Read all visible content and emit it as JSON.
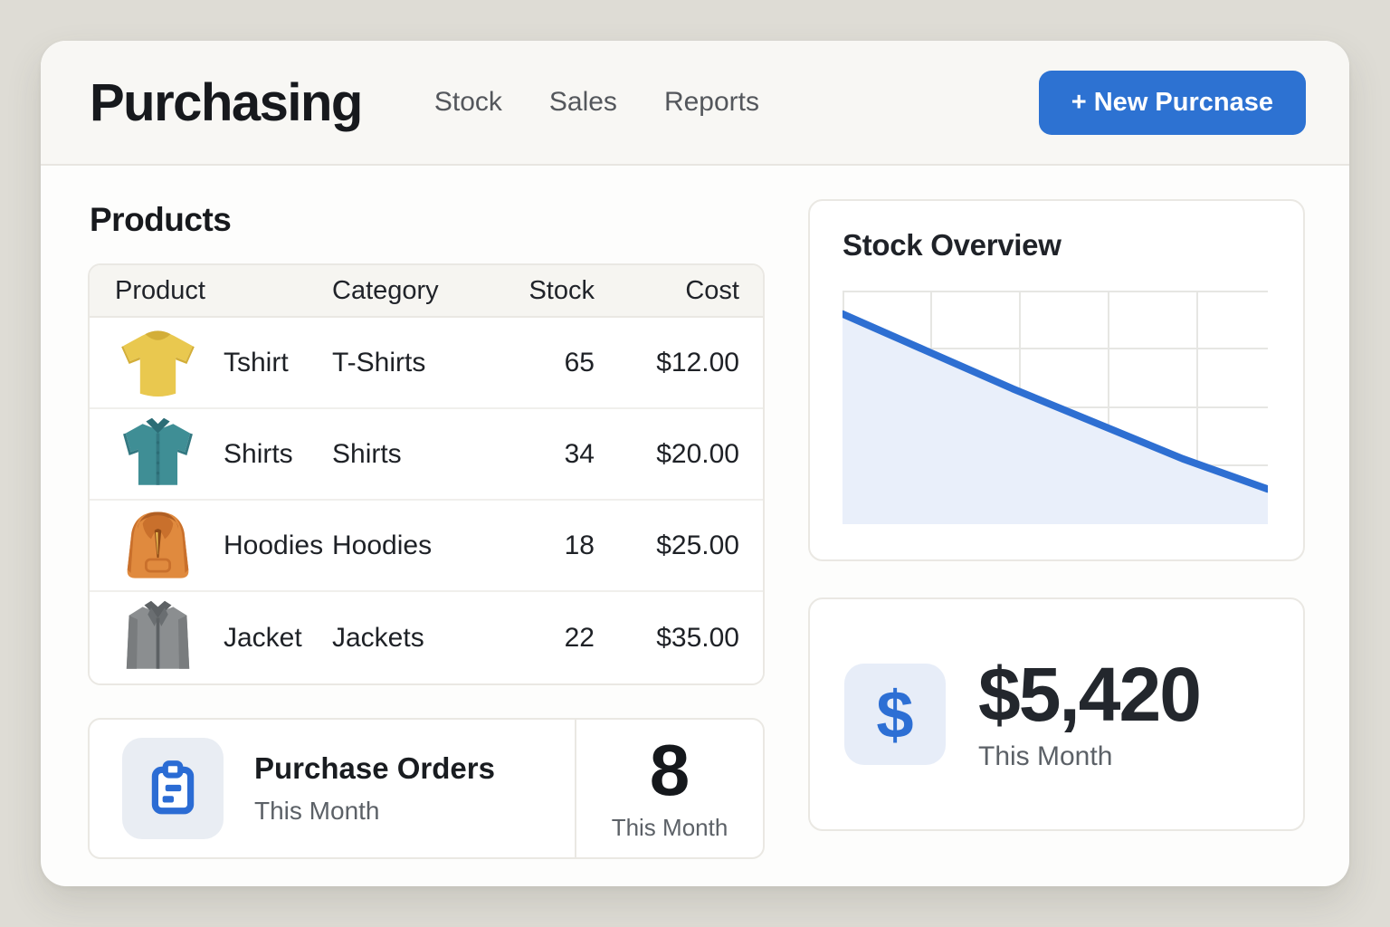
{
  "header": {
    "title": "Purchasing",
    "nav": [
      {
        "label": "Stock"
      },
      {
        "label": "Sales"
      },
      {
        "label": "Reports"
      }
    ],
    "new_purchase_button": "+ New Purcnase"
  },
  "products": {
    "heading": "Products",
    "table": {
      "columns": {
        "product": "Product",
        "category": "Category",
        "stock": "Stock",
        "cost": "Cost"
      },
      "rows": [
        {
          "icon": "tshirt-icon",
          "product": "Tshirt",
          "category": "T-Shirts",
          "stock": "65",
          "cost": "$12.00"
        },
        {
          "icon": "shirt-icon",
          "product": "Shirts",
          "category": "Shirts",
          "stock": "34",
          "cost": "$20.00"
        },
        {
          "icon": "hoodie-icon",
          "product": "Hoodies",
          "category": "Hoodies",
          "stock": "18",
          "cost": "$25.00"
        },
        {
          "icon": "jacket-icon",
          "product": "Jacket",
          "category": "Jackets",
          "stock": "22",
          "cost": "$35.00"
        }
      ]
    }
  },
  "purchase_orders_card": {
    "title": "Purchase Orders",
    "subtitle": "This Month",
    "count": "8",
    "count_label": "This Month"
  },
  "stock_overview_card": {
    "title": "Stock Overview"
  },
  "chart_data": {
    "type": "area",
    "title": "Stock Overview",
    "x": [
      0,
      1,
      2,
      3,
      4,
      5
    ],
    "values": [
      90,
      74,
      58,
      43,
      28,
      15
    ],
    "xlabel": "",
    "ylabel": "",
    "ylim": [
      0,
      100
    ],
    "grid": true,
    "tick_labels_visible": false,
    "legend": "none",
    "line_color": "#2e6fd2",
    "fill_color": "#e9effa"
  },
  "spend_card": {
    "amount": "$5,420",
    "label": "This Month",
    "currency_icon": "dollar-icon",
    "dollar_glyph": "$"
  },
  "colors": {
    "accent_blue": "#2d72d2",
    "page_background": "#dedcd5"
  }
}
